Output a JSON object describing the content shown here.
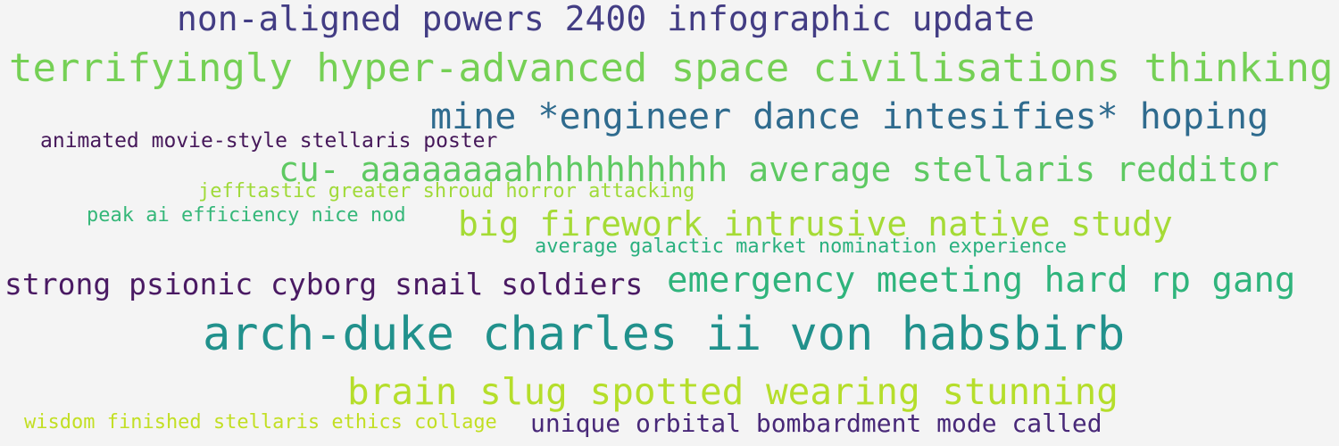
{
  "background_color": "#f4f4f4",
  "words": [
    {
      "text": "non-aligned powers 2400 infographic update",
      "color": "#433d84"
    },
    {
      "text": "terrifyingly hyper-advanced space civilisations thinking",
      "color": "#75d055"
    },
    {
      "text": "mine *engineer dance intesifies* hoping",
      "color": "#2f6b8e"
    },
    {
      "text": "animated movie-style stellaris poster",
      "color": "#46185a"
    },
    {
      "text": "cu- aaaaaaaahhhhhhhhhh average stellaris redditor",
      "color": "#5ec962"
    },
    {
      "text": "jefftastic greater shroud horror attacking",
      "color": "#a0da39"
    },
    {
      "text": "peak ai efficiency nice nod",
      "color": "#35b779"
    },
    {
      "text": "big firework intrusive native study",
      "color": "#a5db36"
    },
    {
      "text": "average galactic market nomination experience",
      "color": "#2ab07f"
    },
    {
      "text": "strong psionic cyborg snail soldiers",
      "color": "#4a1a63"
    },
    {
      "text": "emergency meeting hard rp gang",
      "color": "#2fb47c"
    },
    {
      "text": "arch-duke charles ii von habsbirb",
      "color": "#21918c"
    },
    {
      "text": "brain slug spotted wearing stunning",
      "color": "#b5de2b"
    },
    {
      "text": "wisdom finished stellaris ethics collage",
      "color": "#c2df23"
    },
    {
      "text": "unique orbital bombardment mode called",
      "color": "#482878"
    }
  ]
}
